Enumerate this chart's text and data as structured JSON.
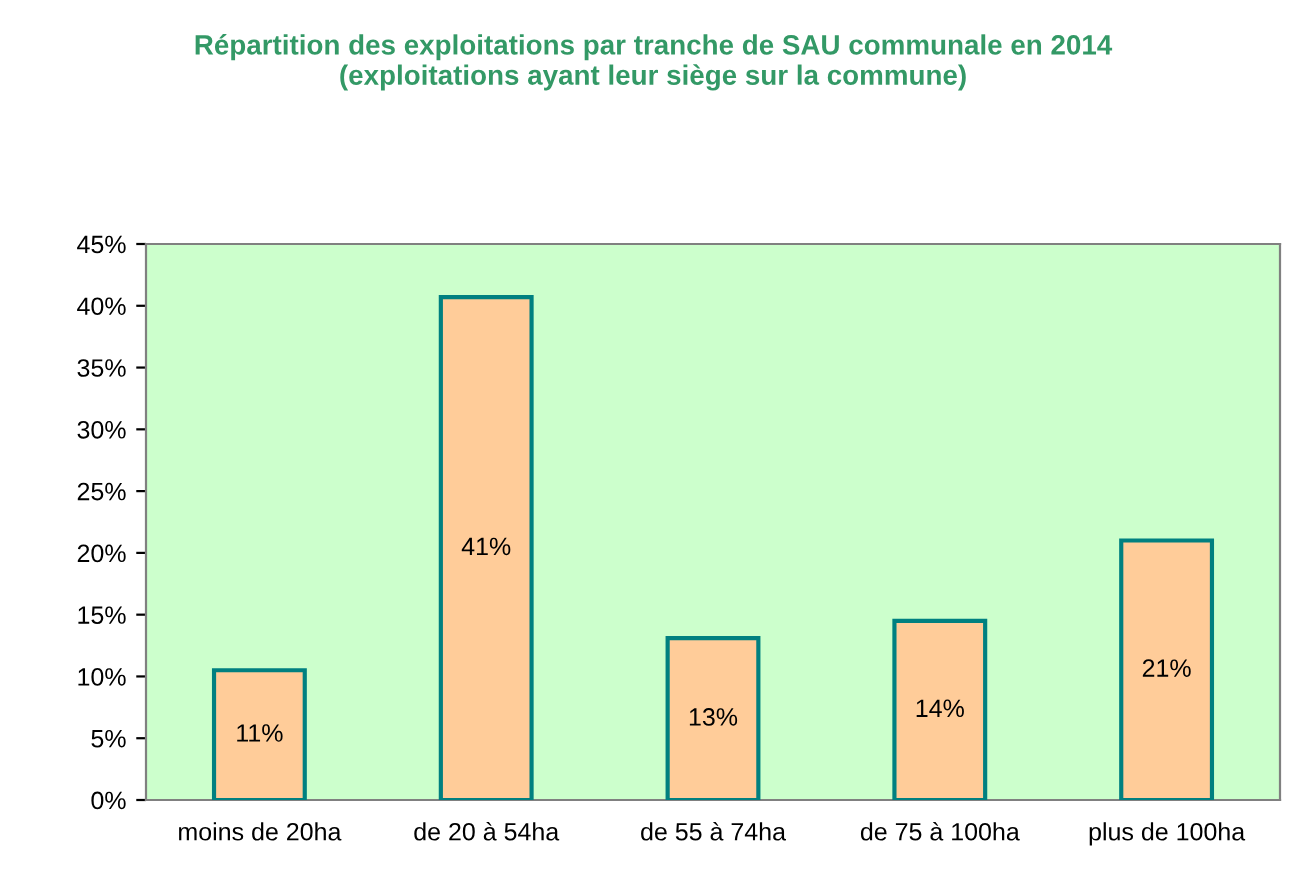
{
  "chart_data": {
    "type": "bar",
    "title": "Répartition des exploitations par tranche de SAU communale en 2014\n(exploitations ayant leur siège sur la commune)",
    "categories": [
      "moins de 20ha",
      "de 20 à 54ha",
      "de 55 à 74ha",
      "de 75 à 100ha",
      "plus de 100ha"
    ],
    "values": [
      10.5,
      40.7,
      13.1,
      14.5,
      21.0
    ],
    "value_labels": [
      "11%",
      "41%",
      "13%",
      "14%",
      "21%"
    ],
    "color": "#ffcc99",
    "ylim": [
      0,
      45
    ],
    "yticks": [
      {
        "value": 0,
        "label": "0%"
      },
      {
        "value": 5,
        "label": "5%"
      },
      {
        "value": 10,
        "label": "10%"
      },
      {
        "value": 15,
        "label": "15%"
      },
      {
        "value": 20,
        "label": "20%"
      },
      {
        "value": 25,
        "label": "25%"
      },
      {
        "value": 30,
        "label": "30%"
      },
      {
        "value": 35,
        "label": "35%"
      },
      {
        "value": 40,
        "label": "40%"
      },
      {
        "value": 45,
        "label": "45%"
      }
    ],
    "grid": false,
    "legend": false
  }
}
